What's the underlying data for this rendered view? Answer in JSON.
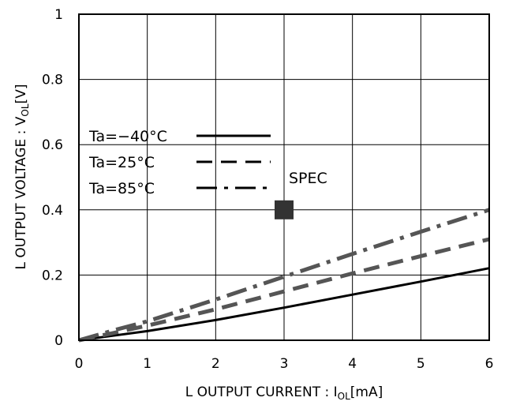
{
  "chart_data": {
    "type": "line",
    "x_ticks": [
      "0",
      "1",
      "2",
      "3",
      "4",
      "5",
      "6"
    ],
    "y_ticks": [
      "0",
      "0.2",
      "0.4",
      "0.6",
      "0.8",
      "1"
    ],
    "xlim": [
      0,
      6
    ],
    "ylim": [
      0,
      1
    ],
    "grid": true,
    "xlabel": {
      "prefix": "L OUTPUT CURRENT : I",
      "subscript": "OL",
      "suffix": "[mA]"
    },
    "ylabel": {
      "prefix": "L OUTPUT VOLTAGE : V",
      "subscript": "OL",
      "suffix": "[V]"
    },
    "legend_placement": "upper-left",
    "series": [
      {
        "name": "Ta=−40°C",
        "style": "solid",
        "color": "#000000",
        "x": [
          0,
          0.5,
          1,
          2,
          3,
          4,
          5,
          6
        ],
        "y": [
          0,
          0.014,
          0.028,
          0.062,
          0.1,
          0.14,
          0.18,
          0.221
        ]
      },
      {
        "name": "Ta=25°C",
        "style": "dashed",
        "color": "#555555",
        "x": [
          0,
          0.5,
          1,
          2,
          3,
          4,
          5,
          6
        ],
        "y": [
          0,
          0.022,
          0.045,
          0.095,
          0.15,
          0.205,
          0.258,
          0.31
        ]
      },
      {
        "name": "Ta=85°C",
        "style": "dashdot",
        "color": "#555555",
        "x": [
          0,
          0.5,
          1,
          2,
          3,
          4,
          5,
          6
        ],
        "y": [
          0,
          0.03,
          0.058,
          0.125,
          0.195,
          0.265,
          0.333,
          0.4
        ]
      }
    ],
    "spec": {
      "label": "SPEC",
      "x": 3,
      "y": 0.4,
      "color": "#333333"
    }
  }
}
